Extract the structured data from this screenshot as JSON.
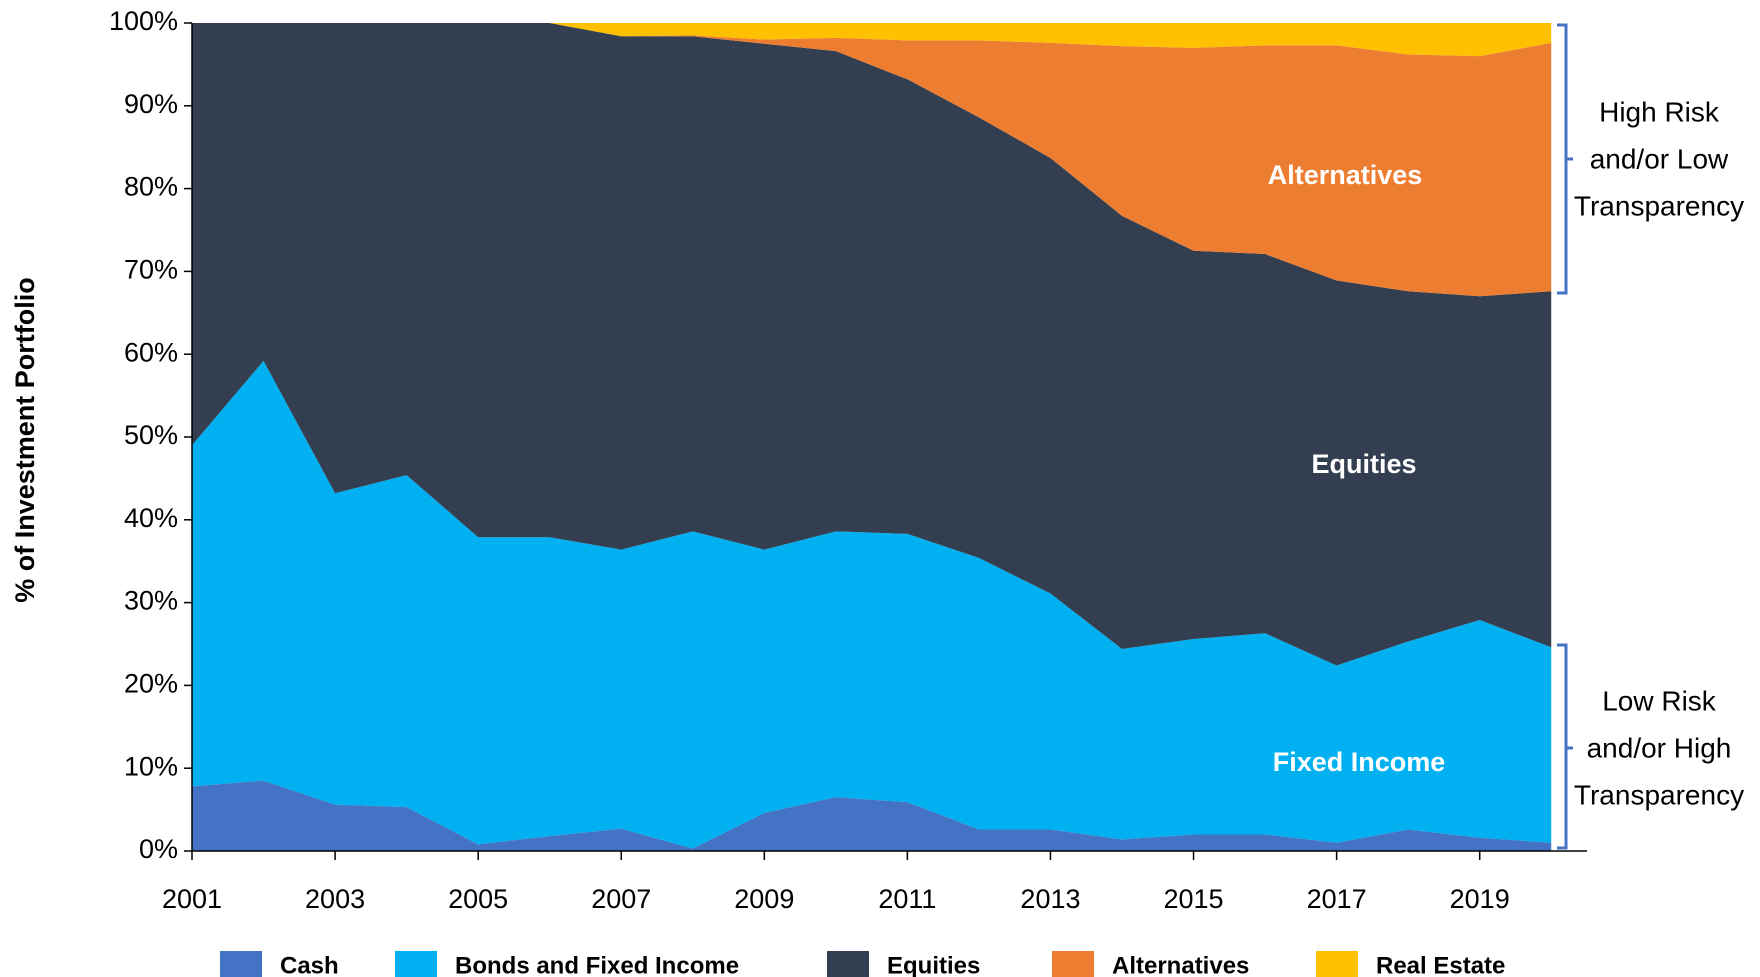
{
  "chart_data": {
    "type": "stacked-area",
    "y_label": "% of Investment Portfolio",
    "x": [
      2001,
      2002,
      2003,
      2004,
      2005,
      2006,
      2007,
      2008,
      2009,
      2010,
      2011,
      2012,
      2013,
      2014,
      2015,
      2016,
      2017,
      2018,
      2019,
      2020
    ],
    "series": [
      {
        "name": "Cash",
        "color": "#4472c4",
        "values": [
          7.8,
          8.5,
          5.6,
          5.3,
          0.8,
          1.8,
          2.7,
          0.3,
          4.6,
          6.5,
          5.9,
          2.6,
          2.6,
          1.4,
          2.0,
          2.0,
          1.0,
          2.6,
          1.6,
          1.0
        ]
      },
      {
        "name": "Bonds and Fixed Income",
        "color": "#00b0f0",
        "values": [
          41.2,
          50.7,
          37.6,
          40.1,
          37.1,
          36.1,
          33.7,
          38.3,
          31.8,
          32.1,
          32.4,
          32.8,
          28.5,
          23.0,
          23.6,
          24.3,
          21.4,
          22.7,
          26.3,
          23.6
        ]
      },
      {
        "name": "Equities",
        "color": "#333f50",
        "values": [
          51.0,
          40.8,
          56.8,
          54.6,
          62.1,
          62.1,
          62.0,
          59.8,
          61.1,
          58.0,
          54.9,
          53.2,
          52.6,
          52.3,
          46.9,
          45.8,
          46.5,
          42.3,
          39.1,
          43.0
        ]
      },
      {
        "name": "Alternatives",
        "color": "#ed7d31",
        "values": [
          0,
          0,
          0,
          0,
          0,
          0,
          0,
          0.1,
          0.5,
          1.6,
          4.7,
          9.3,
          13.9,
          20.5,
          24.5,
          25.2,
          28.4,
          28.6,
          29.0,
          30.0
        ]
      },
      {
        "name": "Real Estate",
        "color": "#ffc000",
        "values": [
          0,
          0,
          0,
          0,
          0,
          0,
          1.6,
          1.5,
          2.0,
          1.8,
          2.1,
          2.1,
          2.4,
          2.8,
          3.0,
          2.7,
          2.7,
          3.8,
          4.0,
          2.4
        ]
      }
    ],
    "xlim": [
      2001,
      2020.5
    ],
    "xticks": [
      2001,
      2003,
      2005,
      2007,
      2009,
      2011,
      2013,
      2015,
      2017,
      2019
    ],
    "ylim": [
      0,
      100
    ],
    "yticks": [
      {
        "value": 0,
        "label": "0%"
      },
      {
        "value": 10,
        "label": "10%"
      },
      {
        "value": 20,
        "label": "20%"
      },
      {
        "value": 30,
        "label": "30%"
      },
      {
        "value": 40,
        "label": "40%"
      },
      {
        "value": 50,
        "label": "50%"
      },
      {
        "value": 60,
        "label": "60%"
      },
      {
        "value": 70,
        "label": "70%"
      },
      {
        "value": 80,
        "label": "80%"
      },
      {
        "value": 90,
        "label": "90%"
      },
      {
        "value": 100,
        "label": "100%"
      }
    ],
    "annotations": {
      "alternatives": "Alternatives",
      "equities": "Equities",
      "fixed_income": "Fixed Income",
      "high_risk": [
        "High Risk",
        "and/or Low",
        "Transparency"
      ],
      "low_risk": [
        "Low Risk",
        "and/or High",
        "Transparency"
      ]
    }
  }
}
